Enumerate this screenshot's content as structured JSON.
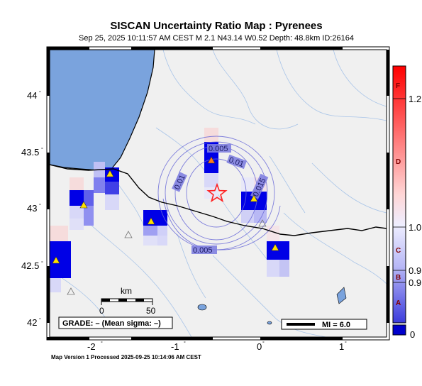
{
  "title": "SISCAN Uncertainty Ratio Map : Pyrenees",
  "subtitle": "Sep 25, 2025 10:11:57 AM CEST   M 2.1   N43.14 W0.52   Depth: 48.8km   ID:26164",
  "footer": "Map Version 1 Processed 2025-09-25 10:14:06 AM CEST",
  "map": {
    "lon_range": [
      -2.65,
      1.55
    ],
    "lat_range": [
      41.95,
      44.45
    ],
    "lat_ticks": [
      "44",
      "43.5",
      "43",
      "42.5",
      "42"
    ],
    "lon_ticks": [
      "-2",
      "-1",
      "0",
      "1"
    ],
    "epicenter": {
      "lon": -0.52,
      "lat": 43.14
    },
    "contour_labels": [
      "0.005",
      "0.01",
      "0.015",
      "0.01",
      "0.005"
    ],
    "scale_bar": {
      "unit": "km",
      "start": "0",
      "end": "50"
    },
    "grade_text": "GRADE: – (Mean sigma: –)",
    "mi_text": "MI = 6.0"
  },
  "colorbar": {
    "letters": [
      "F",
      "D",
      "C",
      "B",
      "A"
    ],
    "values": [
      "1.2",
      "1.0",
      "0.9",
      "0.9",
      "0"
    ],
    "top_color": "#ff0000",
    "bottom_color": "#0000cc"
  },
  "colors": {
    "ocean": "#7aa3dd",
    "land": "#f0f0f0",
    "station_blue": "#0000e6",
    "contour": "#6a6ad8",
    "epicenter": "#ff2020"
  }
}
